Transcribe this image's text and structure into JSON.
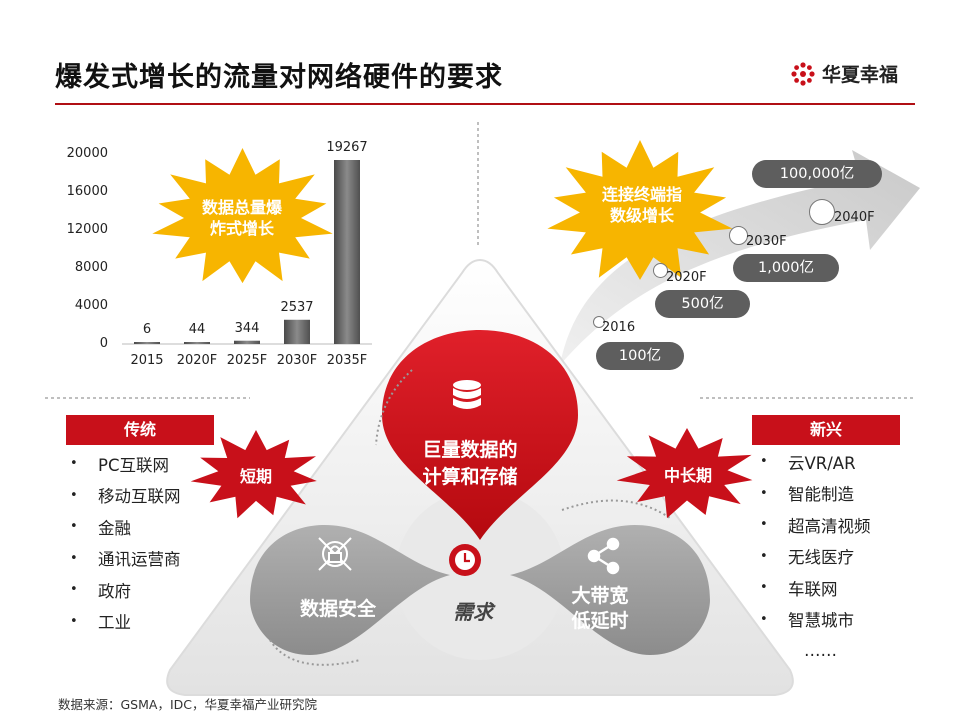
{
  "header": {
    "title": "爆发式增长的流量对网络硬件的要求",
    "brand": "华夏幸福"
  },
  "footer": {
    "source": "数据来源：GSMA，IDC，华夏幸福产业研究院"
  },
  "chart_data": {
    "type": "bar",
    "categories": [
      "2015",
      "2020F",
      "2025F",
      "2030F",
      "2035F"
    ],
    "values": [
      6,
      44,
      344,
      2537,
      19267
    ],
    "yticks": [
      "20000",
      "16000",
      "12000",
      "8000",
      "4000",
      "0"
    ],
    "ylim": [
      0,
      20000
    ],
    "annotation": "数据总量爆炸式增长",
    "annotation_lines": [
      "数据总量爆",
      "炸式增长"
    ]
  },
  "growth": {
    "annotation_lines": [
      "连接终端指",
      "数级增长"
    ],
    "years": [
      "2016",
      "2020F",
      "2030F",
      "2040F"
    ],
    "values": [
      "100亿",
      "500亿",
      "1,000亿",
      "100,000亿"
    ]
  },
  "traditional": {
    "badge": "传统",
    "burst": "短期",
    "items": [
      "PC互联网",
      "移动互联网",
      "金融",
      "通讯运营商",
      "政府",
      "工业"
    ]
  },
  "emerging": {
    "badge": "新兴",
    "burst": "中长期",
    "items": [
      "云VR/AR",
      "智能制造",
      "超高清视频",
      "无线医疗",
      "车联网",
      "智慧城市",
      "……"
    ]
  },
  "center": {
    "top": [
      "巨量数据的",
      "计算和存储"
    ],
    "left": "数据安全",
    "right": [
      "大带宽",
      "低延时"
    ],
    "core": "需求"
  },
  "colors": {
    "red": "#c8101a",
    "gray": "#9a9a9a",
    "burst": "#f7b500"
  }
}
